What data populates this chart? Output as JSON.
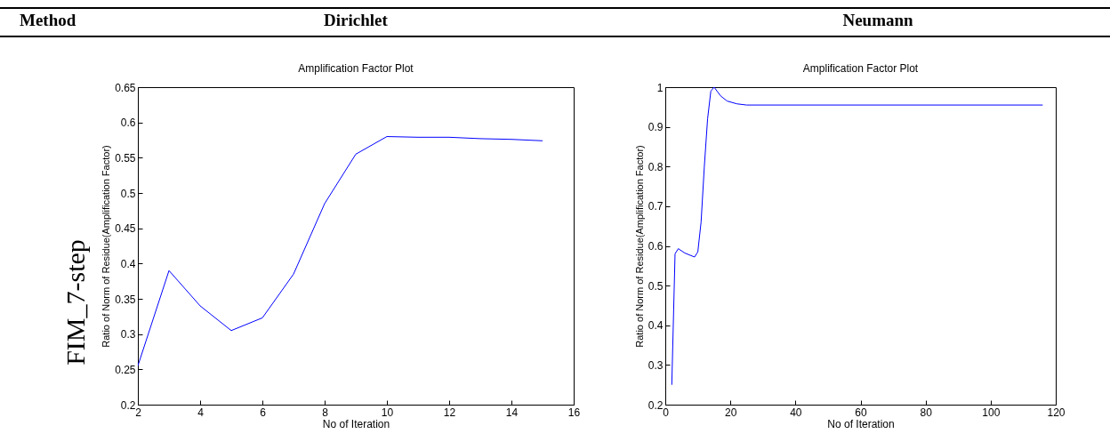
{
  "chart_data": [
    {
      "type": "line",
      "title": "Amplification Factor Plot",
      "xlabel": "No of Iteration",
      "ylabel": "Ratio of Norm of Residue(Amplification Factor)",
      "annotations": [
        "Method",
        "Dirichlet",
        "FIM_7-step"
      ],
      "x": [
        2,
        3,
        4,
        5,
        6,
        7,
        8,
        9,
        10,
        11,
        12,
        13,
        14,
        15
      ],
      "series": [
        {
          "color": "#0000ff",
          "values": [
            0.255,
            0.39,
            0.34,
            0.305,
            0.323,
            0.385,
            0.485,
            0.555,
            0.58,
            0.579,
            0.579,
            0.577,
            0.576,
            0.574
          ]
        }
      ],
      "xlim": [
        2,
        16
      ],
      "xticks": [
        2,
        4,
        6,
        8,
        10,
        12,
        14,
        16
      ],
      "ylim": [
        0.2,
        0.65
      ],
      "yticks": [
        0.2,
        0.25,
        0.3,
        0.35,
        0.4,
        0.45,
        0.5,
        0.55,
        0.6,
        0.65
      ],
      "grid": false,
      "marker": "none",
      "line_style": "solid"
    },
    {
      "type": "line",
      "title": "Amplification Factor Plot",
      "xlabel": "No of Iteration",
      "ylabel": "Ratio of Norm of Residue(Amplification Factor)",
      "annotations": [
        "Neumann"
      ],
      "x": [
        2,
        3,
        4,
        6,
        9,
        10,
        11,
        12,
        13,
        14,
        15,
        17,
        19,
        22,
        25,
        116
      ],
      "series": [
        {
          "color": "#0000ff",
          "values": [
            0.25,
            0.58,
            0.593,
            0.582,
            0.572,
            0.585,
            0.66,
            0.8,
            0.92,
            0.99,
            1.0,
            0.978,
            0.965,
            0.958,
            0.955,
            0.955
          ]
        }
      ],
      "xlim": [
        0,
        120
      ],
      "xticks": [
        0,
        20,
        40,
        60,
        80,
        100,
        120
      ],
      "ylim": [
        0.2,
        1
      ],
      "yticks": [
        0.2,
        0.3,
        0.4,
        0.5,
        0.6,
        0.7,
        0.8,
        0.9,
        1
      ],
      "grid": false,
      "marker": "none",
      "line_style": "solid"
    }
  ]
}
